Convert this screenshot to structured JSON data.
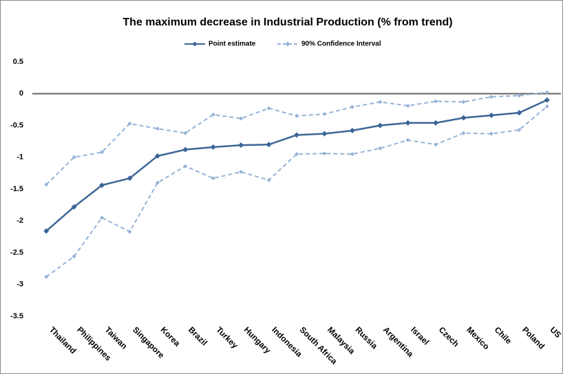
{
  "chart_data": {
    "type": "line",
    "title": "The maximum decrease in Industrial Production (% from trend)",
    "categories": [
      "Thailand",
      "Philippines",
      "Taiwan",
      "Singapore",
      "Korea",
      "Brazil",
      "Turkey",
      "Hungary",
      "Indonesia",
      "South Africa",
      "Malaysia",
      "Russia",
      "Argentina",
      "Israel",
      "Czech",
      "Mexico",
      "Chile",
      "Poland",
      "US"
    ],
    "series": [
      {
        "name": "Point estimate",
        "color": "#3b6595",
        "dashed": false,
        "values": [
          -2.16,
          -1.78,
          -1.44,
          -1.33,
          -0.98,
          -0.88,
          -0.84,
          -0.81,
          -0.8,
          -0.65,
          -0.63,
          -0.58,
          -0.5,
          -0.46,
          -0.46,
          -0.38,
          -0.34,
          -0.3,
          -0.1
        ]
      },
      {
        "name": "90% Confidence Interval",
        "color": "#95b3d7",
        "dashed": true,
        "upper": [
          -1.43,
          -1.0,
          -0.92,
          -0.47,
          -0.55,
          -0.62,
          -0.33,
          -0.39,
          -0.23,
          -0.35,
          -0.32,
          -0.21,
          -0.13,
          -0.19,
          -0.12,
          -0.13,
          -0.05,
          -0.03,
          0.02
        ],
        "lower": [
          -2.88,
          -2.56,
          -1.95,
          -2.17,
          -1.4,
          -1.14,
          -1.33,
          -1.23,
          -1.36,
          -0.95,
          -0.94,
          -0.95,
          -0.86,
          -0.73,
          -0.8,
          -0.62,
          -0.63,
          -0.57,
          -0.2
        ]
      }
    ],
    "ylim": [
      -3.5,
      0.5
    ],
    "yticks": [
      0.5,
      0,
      -0.5,
      -1,
      -1.5,
      -2,
      -2.5,
      -3,
      -3.5
    ],
    "grid": false,
    "legend": "top"
  }
}
